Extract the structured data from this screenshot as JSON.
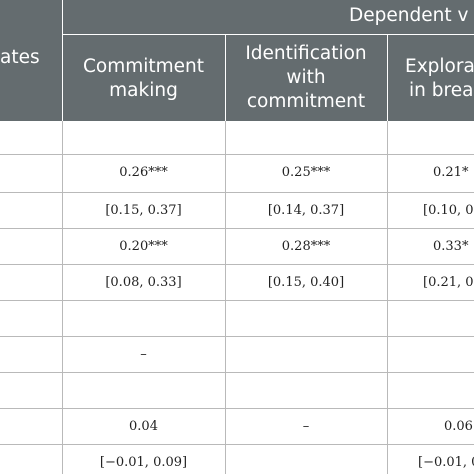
{
  "table": {
    "header": {
      "stub_label_fragment": "ates",
      "group_label": "Dependent v",
      "columns": [
        "Commitment making",
        "Identification with commitment",
        "Explora in brea"
      ],
      "col1_lines": [
        "Commitment",
        "making"
      ],
      "col2_lines": [
        "Identification",
        "with",
        "commitment"
      ],
      "col3_lines": [
        "Explora",
        "in brea"
      ]
    },
    "rows": [
      [
        "",
        "",
        ""
      ],
      [
        "0.26***",
        "0.25***",
        "0.21*"
      ],
      [
        "[0.15, 0.37]",
        "[0.14, 0.37]",
        "[0.10, 0"
      ],
      [
        "0.20***",
        "0.28***",
        "0.33*"
      ],
      [
        "[0.08, 0.33]",
        "[0.15, 0.40]",
        "[0.21, 0"
      ],
      [
        "",
        "",
        ""
      ],
      [
        "–",
        "",
        ""
      ],
      [
        "",
        "",
        ""
      ],
      [
        "0.04",
        "–",
        "0.06"
      ],
      [
        "[−0.01, 0.09]",
        "",
        "[−0.01, 0"
      ]
    ]
  },
  "colors": {
    "header_bg": "#646c6f",
    "header_text": "#ffffff",
    "grid": "#b9b9b9",
    "body_text": "#222222"
  }
}
